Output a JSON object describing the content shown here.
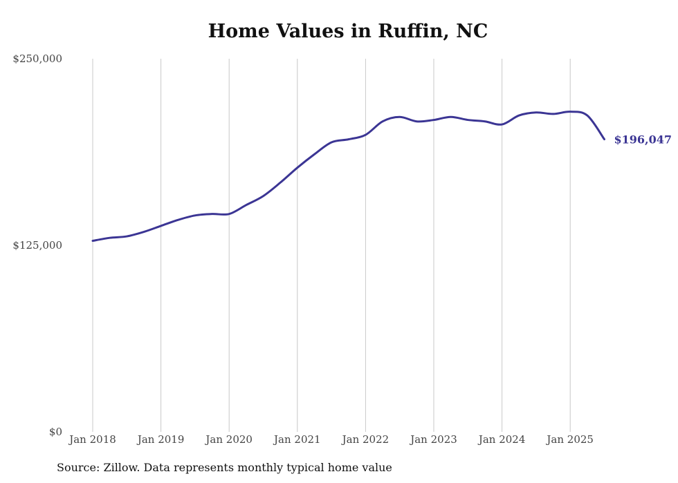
{
  "chart_data": {
    "type": "line",
    "title": "Home Values in Ruffin, NC",
    "source": "Source: Zillow. Data represents monthly typical home value",
    "ylim": [
      0,
      250000
    ],
    "y_ticks": [
      {
        "value": 0,
        "label": "$0"
      },
      {
        "value": 125000,
        "label": "$125,000"
      },
      {
        "value": 250000,
        "label": "$250,000"
      }
    ],
    "x_ticks": [
      {
        "value": "2018-01",
        "label": "Jan 2018"
      },
      {
        "value": "2019-01",
        "label": "Jan 2019"
      },
      {
        "value": "2020-01",
        "label": "Jan 2020"
      },
      {
        "value": "2021-01",
        "label": "Jan 2021"
      },
      {
        "value": "2022-01",
        "label": "Jan 2022"
      },
      {
        "value": "2023-01",
        "label": "Jan 2023"
      },
      {
        "value": "2024-01",
        "label": "Jan 2024"
      },
      {
        "value": "2025-01",
        "label": "Jan 2025"
      }
    ],
    "grid": "vertical",
    "line_color": "#3b3594",
    "end_label": "$196,047",
    "series": [
      {
        "x": [
          "2018-01",
          "2018-04",
          "2018-07",
          "2018-10",
          "2019-01",
          "2019-04",
          "2019-07",
          "2019-10",
          "2020-01",
          "2020-04",
          "2020-07",
          "2020-10",
          "2021-01",
          "2021-04",
          "2021-07",
          "2021-10",
          "2022-01",
          "2022-04",
          "2022-07",
          "2022-10",
          "2023-01",
          "2023-04",
          "2023-07",
          "2023-10",
          "2024-01",
          "2024-04",
          "2024-07",
          "2024-10",
          "2025-01",
          "2025-04",
          "2025-07"
        ],
        "values": [
          128000,
          130000,
          131000,
          134000,
          138000,
          142000,
          145000,
          146000,
          146000,
          152000,
          158000,
          167000,
          177000,
          186000,
          194000,
          196000,
          199000,
          208000,
          211000,
          208000,
          209000,
          211000,
          209000,
          208000,
          206000,
          212000,
          214000,
          213000,
          214500,
          212000,
          196047
        ]
      }
    ]
  }
}
